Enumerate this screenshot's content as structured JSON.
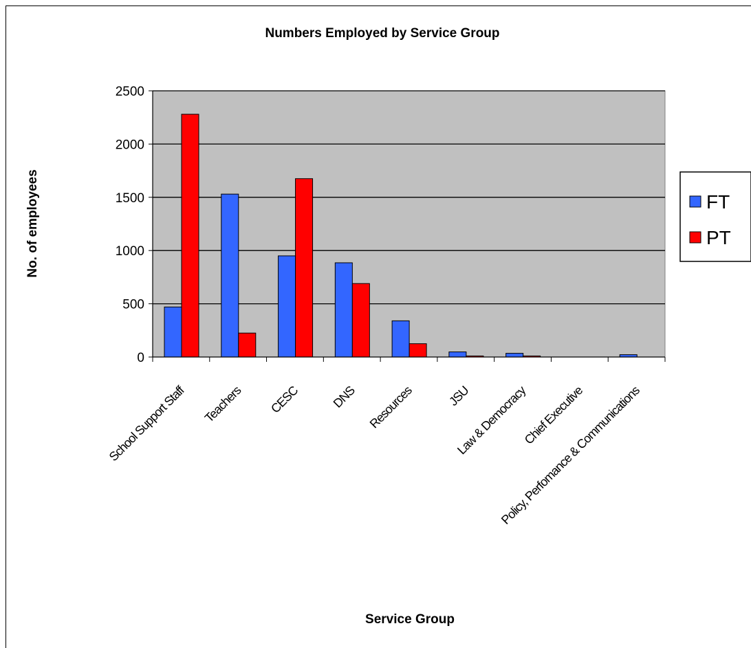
{
  "colors": {
    "ft": "#3366ff",
    "pt": "#ff0000",
    "plot_bg": "#c0c0c0"
  },
  "chart_data": {
    "type": "bar",
    "title": "Numbers Employed by Service Group",
    "xlabel": "Service Group",
    "ylabel": "No. of employees",
    "ylim": [
      0,
      2500
    ],
    "yticks": [
      "0",
      "500",
      "1000",
      "1500",
      "2000",
      "2500"
    ],
    "grid": true,
    "legend": "right",
    "categories": [
      "School Support Staff",
      "Teachers",
      "CESC",
      "DNS",
      "Resources",
      "JSU",
      "Law & Democracy",
      "Chief Executive",
      "Policy, Perfomance & Communications"
    ],
    "series": [
      {
        "name": "FT",
        "color": "#3366ff",
        "values": [
          470,
          1530,
          950,
          885,
          340,
          48,
          35,
          0,
          22
        ]
      },
      {
        "name": "PT",
        "color": "#ff0000",
        "values": [
          2280,
          225,
          1675,
          690,
          125,
          10,
          10,
          0,
          0
        ]
      }
    ]
  }
}
